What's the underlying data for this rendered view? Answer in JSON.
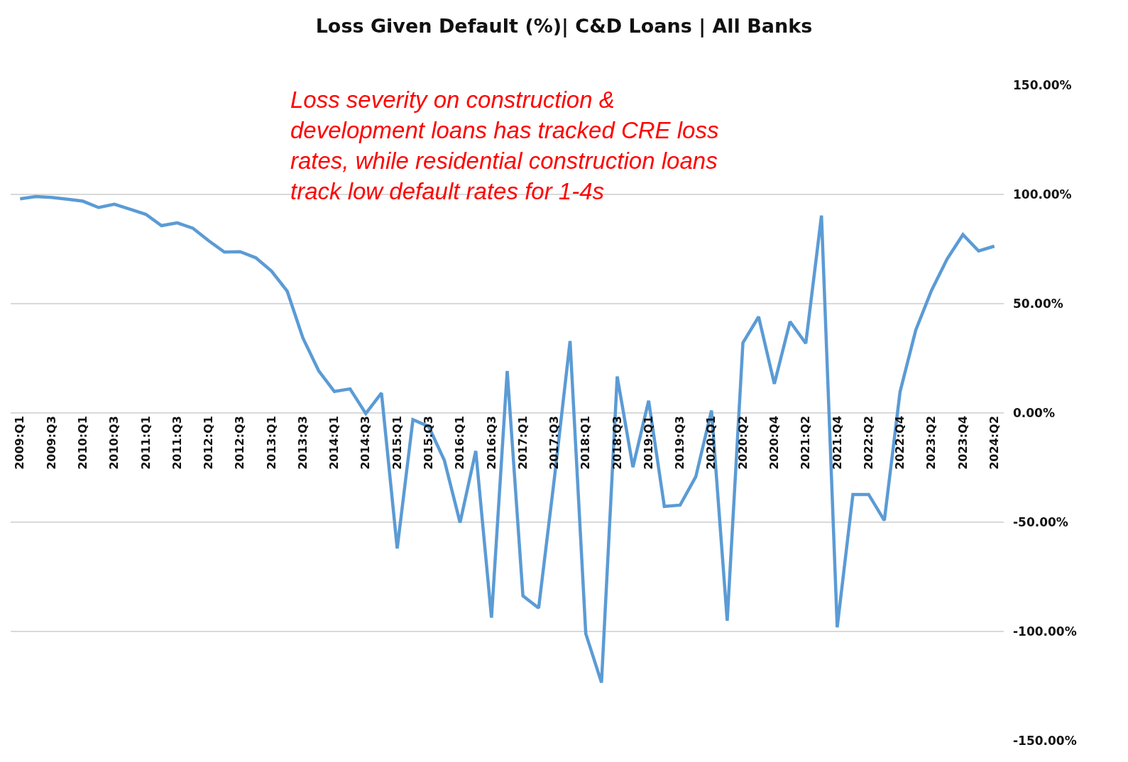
{
  "chart_data": {
    "type": "line",
    "title": "Loss Given Default (%)| C&D Loans | All Banks",
    "categories": [
      "2009:Q1",
      null,
      "2009:Q3",
      null,
      "2010:Q1",
      null,
      "2010:Q3",
      null,
      "2011:Q1",
      null,
      "2011:Q3",
      null,
      "2012:Q1",
      null,
      "2012:Q3",
      null,
      "2013:Q1",
      null,
      "2013:Q3",
      null,
      "2014:Q1",
      null,
      "2014:Q3",
      null,
      "2015:Q1",
      null,
      "2015:Q3",
      null,
      "2016:Q1",
      null,
      "2016:Q3",
      null,
      "2017:Q1",
      null,
      "2017:Q3",
      null,
      "2018:Q1",
      null,
      "2018:Q3",
      null,
      "2019:Q1",
      null,
      "2019:Q3",
      null,
      "2020:Q1",
      null,
      "2020:Q2",
      null,
      "2020:Q4",
      null,
      "2021:Q2",
      null,
      "2021:Q4",
      null,
      "2022:Q2",
      null,
      "2022:Q4",
      null,
      "2023:Q2",
      null,
      "2023:Q4",
      null,
      "2024:Q2"
    ],
    "series": [
      {
        "color": "#5b9bd5",
        "values": [
          98,
          99,
          98.6,
          97.8,
          96.9,
          94,
          95.5,
          93.2,
          90.9,
          85.7,
          87,
          84.5,
          78.8,
          73.6,
          73.8,
          71,
          64.9,
          55.7,
          34.3,
          19.3,
          9.8,
          11,
          -0.3,
          9.1,
          -62,
          -3.1,
          -6.2,
          -21.7,
          -50.2,
          -17.4,
          -93.7,
          19.2,
          -83.7,
          -89.3,
          -30,
          32.9,
          -101,
          -123.4,
          16.7,
          -24.8,
          5.6,
          -42.8,
          -42.2,
          -29.2,
          1.1,
          -95.1,
          32.1,
          44,
          13.3,
          41.8,
          31.8,
          90.3,
          -98.1,
          -37.3,
          -37.3,
          -49.2,
          9.7,
          37.9,
          56,
          70.5,
          81.6,
          74.1,
          76.3
        ]
      }
    ],
    "ylim": [
      -150,
      150
    ],
    "yticks": [
      {
        "value": 150,
        "label": "150.00%"
      },
      {
        "value": 100,
        "label": "100.00%"
      },
      {
        "value": 50,
        "label": "50.00%"
      },
      {
        "value": 0,
        "label": "0.00%"
      },
      {
        "value": -50,
        "label": "-50.00%"
      },
      {
        "value": -100,
        "label": "-100.00%"
      },
      {
        "value": -150,
        "label": "-150.00%"
      }
    ],
    "grid": "y",
    "marker": "none",
    "line_style": "solid",
    "annotations": [
      "Loss severity on construction &\ndevelopment loans has tracked CRE loss\nrates, while residential construction loans\ntrack low default rates for 1-4s"
    ]
  }
}
